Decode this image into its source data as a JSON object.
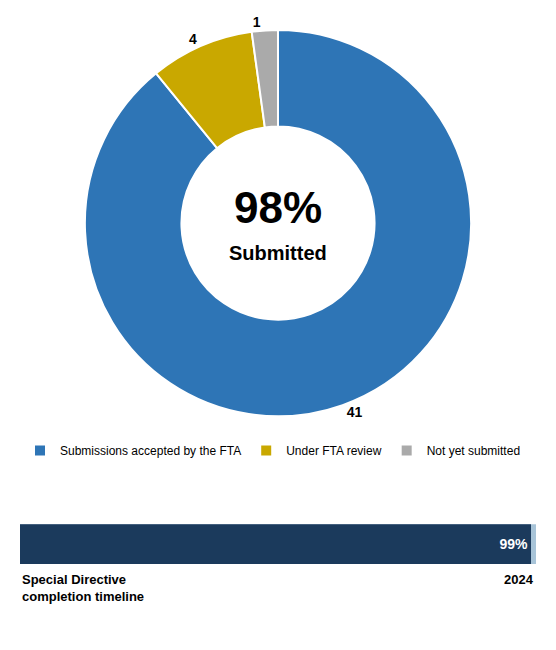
{
  "chart_data": [
    {
      "type": "donut",
      "categories": [
        "Submissions accepted by the FTA",
        "Under FTA review",
        "Not yet submitted"
      ],
      "values": [
        41,
        4,
        1
      ],
      "colors": [
        "#2E75B6",
        "#C9A800",
        "#AAAAAA"
      ],
      "data_labels": true,
      "legend": "bottom",
      "annotations": [
        "98%",
        "Submitted"
      ]
    },
    {
      "type": "bar",
      "orientation": "horizontal",
      "categories": [
        null
      ],
      "series": [
        {
          "color": "#A8C4D8",
          "values": [
            100
          ]
        },
        {
          "color": "#1B3A5C",
          "values": [
            99
          ],
          "value_labels": [
            "99%"
          ]
        }
      ],
      "xlim": [
        0,
        100
      ],
      "tick_labels": false,
      "data_labels": true,
      "annotations": [
        "Special Directive\ncompletion timeline",
        "2024"
      ]
    }
  ]
}
